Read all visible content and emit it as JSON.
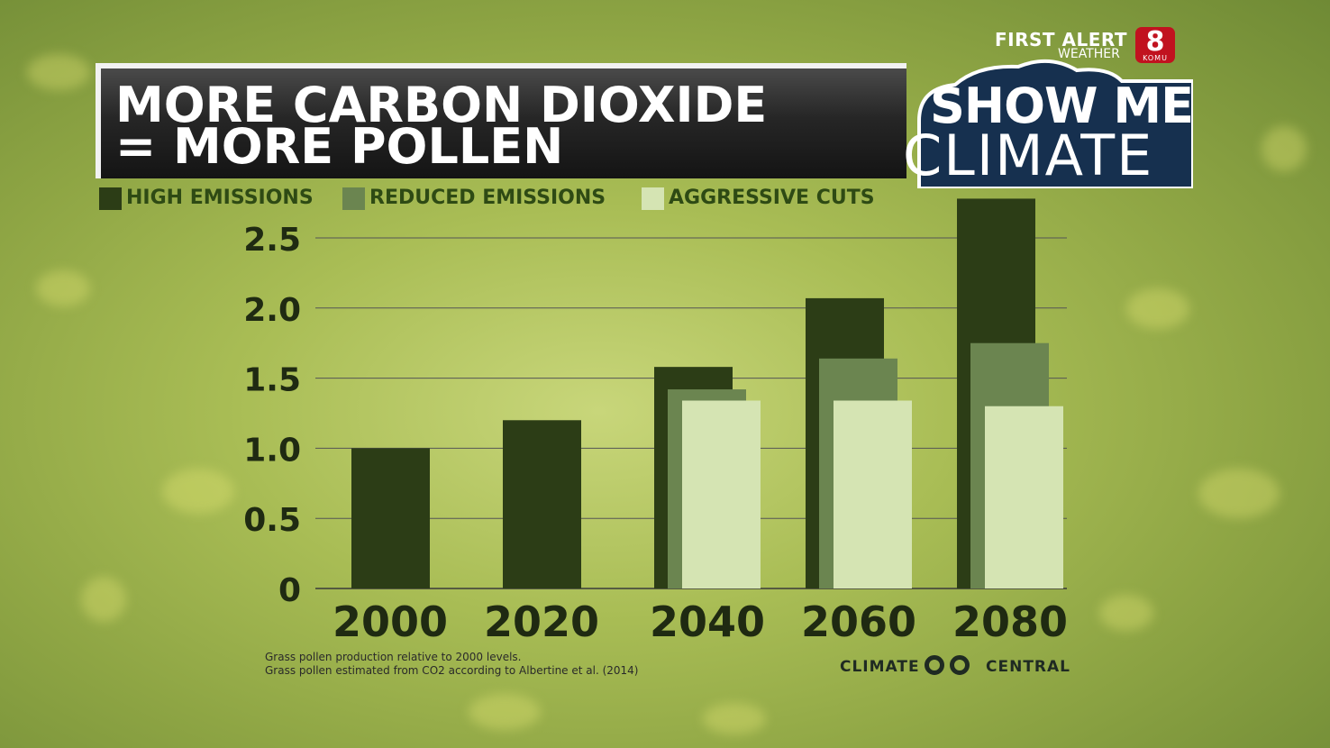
{
  "header": {
    "title_line1": "MORE CARBON DIOXIDE",
    "title_line2": "= MORE POLLEN"
  },
  "branding": {
    "first_alert": "FIRST ALERT",
    "weather": "WEATHER",
    "station_number": "8",
    "station_call": "KOMU",
    "show_me_line1": "SHOW ME",
    "show_me_line2": "CLIMATE",
    "partner_left": "CLIMATE",
    "partner_right": "CENTRAL"
  },
  "footnotes": {
    "line1": "Grass pollen production relative to 2000 levels.",
    "line2": "Grass pollen estimated from CO2 according to Albertine et al. (2014)"
  },
  "colors": {
    "high": "#2c3d16",
    "reduced": "#6b8550",
    "aggressive": "#d5e4b3",
    "title_bg": "#1c1c1c",
    "badge_bg": "#16304f"
  },
  "chart_data": {
    "type": "bar",
    "categories": [
      "2000",
      "2020",
      "2040",
      "2060",
      "2080"
    ],
    "series": [
      {
        "name": "HIGH EMISSIONS",
        "values": [
          1.0,
          1.2,
          1.58,
          2.07,
          2.78
        ]
      },
      {
        "name": "REDUCED EMISSIONS",
        "values": [
          null,
          null,
          1.42,
          1.64,
          1.75
        ]
      },
      {
        "name": "AGGRESSIVE CUTS",
        "values": [
          null,
          null,
          1.34,
          1.34,
          1.3
        ]
      }
    ],
    "yticks": [
      "0",
      "0.5",
      "1.0",
      "1.5",
      "2.0",
      "2.5"
    ],
    "ylim": [
      0,
      2.78
    ],
    "grid": true,
    "legend_position": "top-left"
  }
}
